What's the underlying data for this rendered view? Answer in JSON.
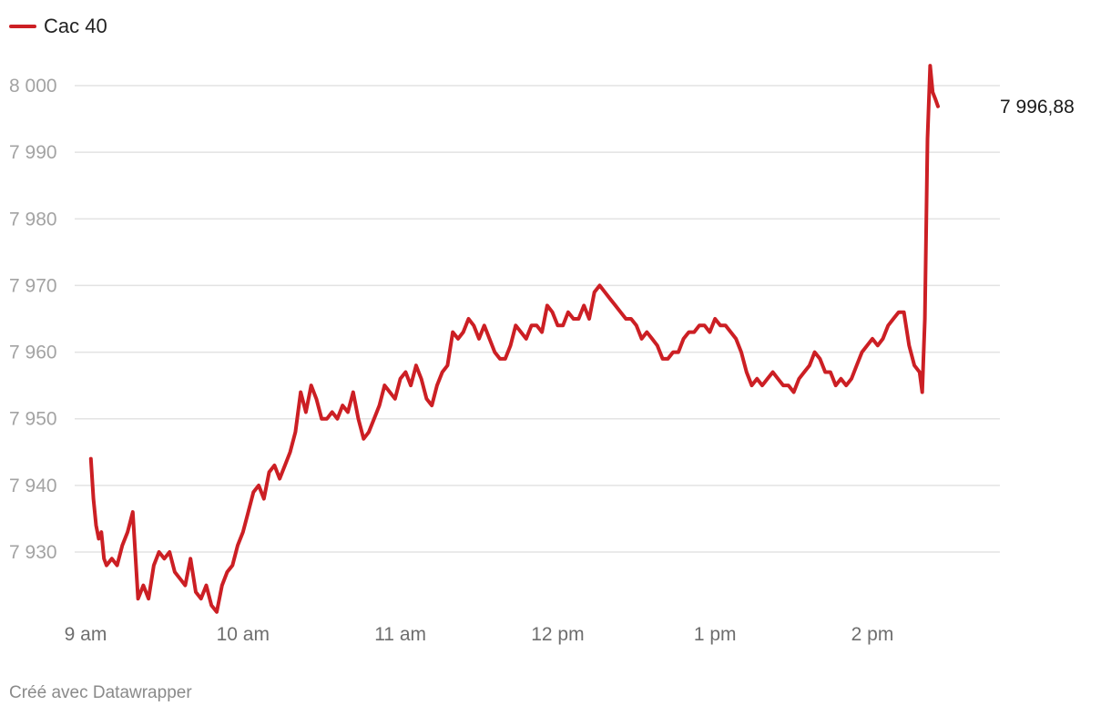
{
  "legend": {
    "label": "Cac 40"
  },
  "footer": {
    "credit": "Créé avec Datawrapper"
  },
  "colors": {
    "series": "#cc1f24",
    "grid": "#e3e3e3"
  },
  "chart_data": {
    "type": "line",
    "title": "",
    "xlabel": "",
    "ylabel": "",
    "ylim": [
      7920,
      8002
    ],
    "xlim": [
      "9:00",
      "14:40"
    ],
    "y_ticks": [
      {
        "value": 8000,
        "label": "8 000"
      },
      {
        "value": 7990,
        "label": "7 990"
      },
      {
        "value": 7980,
        "label": "7 980"
      },
      {
        "value": 7970,
        "label": "7 970"
      },
      {
        "value": 7960,
        "label": "7 960"
      },
      {
        "value": 7950,
        "label": "7 950"
      },
      {
        "value": 7940,
        "label": "7 940"
      },
      {
        "value": 7930,
        "label": "7 930"
      }
    ],
    "x_ticks": [
      {
        "value": "9:00",
        "label": "9 am"
      },
      {
        "value": "10:00",
        "label": "10 am"
      },
      {
        "value": "11:00",
        "label": "11 am"
      },
      {
        "value": "12:00",
        "label": "12 pm"
      },
      {
        "value": "13:00",
        "label": "1 pm"
      },
      {
        "value": "14:00",
        "label": "2 pm"
      }
    ],
    "grid": true,
    "legend_position": "top-left",
    "series": [
      {
        "name": "Cac 40",
        "end_label": "7 996,88",
        "points": [
          [
            "9:02",
            7944
          ],
          [
            "9:03",
            7938
          ],
          [
            "9:04",
            7934
          ],
          [
            "9:05",
            7932
          ],
          [
            "9:06",
            7933
          ],
          [
            "9:07",
            7929
          ],
          [
            "9:08",
            7928
          ],
          [
            "9:10",
            7929
          ],
          [
            "9:12",
            7928
          ],
          [
            "9:14",
            7931
          ],
          [
            "9:16",
            7933
          ],
          [
            "9:18",
            7936
          ],
          [
            "9:20",
            7923
          ],
          [
            "9:22",
            7925
          ],
          [
            "9:24",
            7923
          ],
          [
            "9:26",
            7928
          ],
          [
            "9:28",
            7930
          ],
          [
            "9:30",
            7929
          ],
          [
            "9:32",
            7930
          ],
          [
            "9:34",
            7927
          ],
          [
            "9:36",
            7926
          ],
          [
            "9:38",
            7925
          ],
          [
            "9:40",
            7929
          ],
          [
            "9:42",
            7924
          ],
          [
            "9:44",
            7923
          ],
          [
            "9:46",
            7925
          ],
          [
            "9:48",
            7922
          ],
          [
            "9:50",
            7921
          ],
          [
            "9:52",
            7925
          ],
          [
            "9:54",
            7927
          ],
          [
            "9:56",
            7928
          ],
          [
            "9:58",
            7931
          ],
          [
            "10:00",
            7933
          ],
          [
            "10:02",
            7936
          ],
          [
            "10:04",
            7939
          ],
          [
            "10:06",
            7940
          ],
          [
            "10:08",
            7938
          ],
          [
            "10:10",
            7942
          ],
          [
            "10:12",
            7943
          ],
          [
            "10:14",
            7941
          ],
          [
            "10:16",
            7943
          ],
          [
            "10:18",
            7945
          ],
          [
            "10:20",
            7948
          ],
          [
            "10:22",
            7954
          ],
          [
            "10:24",
            7951
          ],
          [
            "10:26",
            7955
          ],
          [
            "10:28",
            7953
          ],
          [
            "10:30",
            7950
          ],
          [
            "10:32",
            7950
          ],
          [
            "10:34",
            7951
          ],
          [
            "10:36",
            7950
          ],
          [
            "10:38",
            7952
          ],
          [
            "10:40",
            7951
          ],
          [
            "10:42",
            7954
          ],
          [
            "10:44",
            7950
          ],
          [
            "10:46",
            7947
          ],
          [
            "10:48",
            7948
          ],
          [
            "10:50",
            7950
          ],
          [
            "10:52",
            7952
          ],
          [
            "10:54",
            7955
          ],
          [
            "10:56",
            7954
          ],
          [
            "10:58",
            7953
          ],
          [
            "11:00",
            7956
          ],
          [
            "11:02",
            7957
          ],
          [
            "11:04",
            7955
          ],
          [
            "11:06",
            7958
          ],
          [
            "11:08",
            7956
          ],
          [
            "11:10",
            7953
          ],
          [
            "11:12",
            7952
          ],
          [
            "11:14",
            7955
          ],
          [
            "11:16",
            7957
          ],
          [
            "11:18",
            7958
          ],
          [
            "11:20",
            7963
          ],
          [
            "11:22",
            7962
          ],
          [
            "11:24",
            7963
          ],
          [
            "11:26",
            7965
          ],
          [
            "11:28",
            7964
          ],
          [
            "11:30",
            7962
          ],
          [
            "11:32",
            7964
          ],
          [
            "11:34",
            7962
          ],
          [
            "11:36",
            7960
          ],
          [
            "11:38",
            7959
          ],
          [
            "11:40",
            7959
          ],
          [
            "11:42",
            7961
          ],
          [
            "11:44",
            7964
          ],
          [
            "11:46",
            7963
          ],
          [
            "11:48",
            7962
          ],
          [
            "11:50",
            7964
          ],
          [
            "11:52",
            7964
          ],
          [
            "11:54",
            7963
          ],
          [
            "11:56",
            7967
          ],
          [
            "11:58",
            7966
          ],
          [
            "12:00",
            7964
          ],
          [
            "12:02",
            7964
          ],
          [
            "12:04",
            7966
          ],
          [
            "12:06",
            7965
          ],
          [
            "12:08",
            7965
          ],
          [
            "12:10",
            7967
          ],
          [
            "12:12",
            7965
          ],
          [
            "12:14",
            7969
          ],
          [
            "12:16",
            7970
          ],
          [
            "12:18",
            7969
          ],
          [
            "12:20",
            7968
          ],
          [
            "12:22",
            7967
          ],
          [
            "12:24",
            7966
          ],
          [
            "12:26",
            7965
          ],
          [
            "12:28",
            7965
          ],
          [
            "12:30",
            7964
          ],
          [
            "12:32",
            7962
          ],
          [
            "12:34",
            7963
          ],
          [
            "12:36",
            7962
          ],
          [
            "12:38",
            7961
          ],
          [
            "12:40",
            7959
          ],
          [
            "12:42",
            7959
          ],
          [
            "12:44",
            7960
          ],
          [
            "12:46",
            7960
          ],
          [
            "12:48",
            7962
          ],
          [
            "12:50",
            7963
          ],
          [
            "12:52",
            7963
          ],
          [
            "12:54",
            7964
          ],
          [
            "12:56",
            7964
          ],
          [
            "12:58",
            7963
          ],
          [
            "13:00",
            7965
          ],
          [
            "13:02",
            7964
          ],
          [
            "13:04",
            7964
          ],
          [
            "13:06",
            7963
          ],
          [
            "13:08",
            7962
          ],
          [
            "13:10",
            7960
          ],
          [
            "13:12",
            7957
          ],
          [
            "13:14",
            7955
          ],
          [
            "13:16",
            7956
          ],
          [
            "13:18",
            7955
          ],
          [
            "13:20",
            7956
          ],
          [
            "13:22",
            7957
          ],
          [
            "13:24",
            7956
          ],
          [
            "13:26",
            7955
          ],
          [
            "13:28",
            7955
          ],
          [
            "13:30",
            7954
          ],
          [
            "13:32",
            7956
          ],
          [
            "13:34",
            7957
          ],
          [
            "13:36",
            7958
          ],
          [
            "13:38",
            7960
          ],
          [
            "13:40",
            7959
          ],
          [
            "13:42",
            7957
          ],
          [
            "13:44",
            7957
          ],
          [
            "13:46",
            7955
          ],
          [
            "13:48",
            7956
          ],
          [
            "13:50",
            7955
          ],
          [
            "13:52",
            7956
          ],
          [
            "13:54",
            7958
          ],
          [
            "13:56",
            7960
          ],
          [
            "13:58",
            7961
          ],
          [
            "14:00",
            7962
          ],
          [
            "14:02",
            7961
          ],
          [
            "14:04",
            7962
          ],
          [
            "14:06",
            7964
          ],
          [
            "14:08",
            7965
          ],
          [
            "14:10",
            7966
          ],
          [
            "14:12",
            7966
          ],
          [
            "14:14",
            7961
          ],
          [
            "14:16",
            7958
          ],
          [
            "14:18",
            7957
          ],
          [
            "14:19",
            7954
          ],
          [
            "14:20",
            7965
          ],
          [
            "14:21",
            7992
          ],
          [
            "14:22",
            8003
          ],
          [
            "14:23",
            7999
          ],
          [
            "14:24",
            7998
          ],
          [
            "14:25",
            7996.88
          ]
        ]
      }
    ]
  }
}
